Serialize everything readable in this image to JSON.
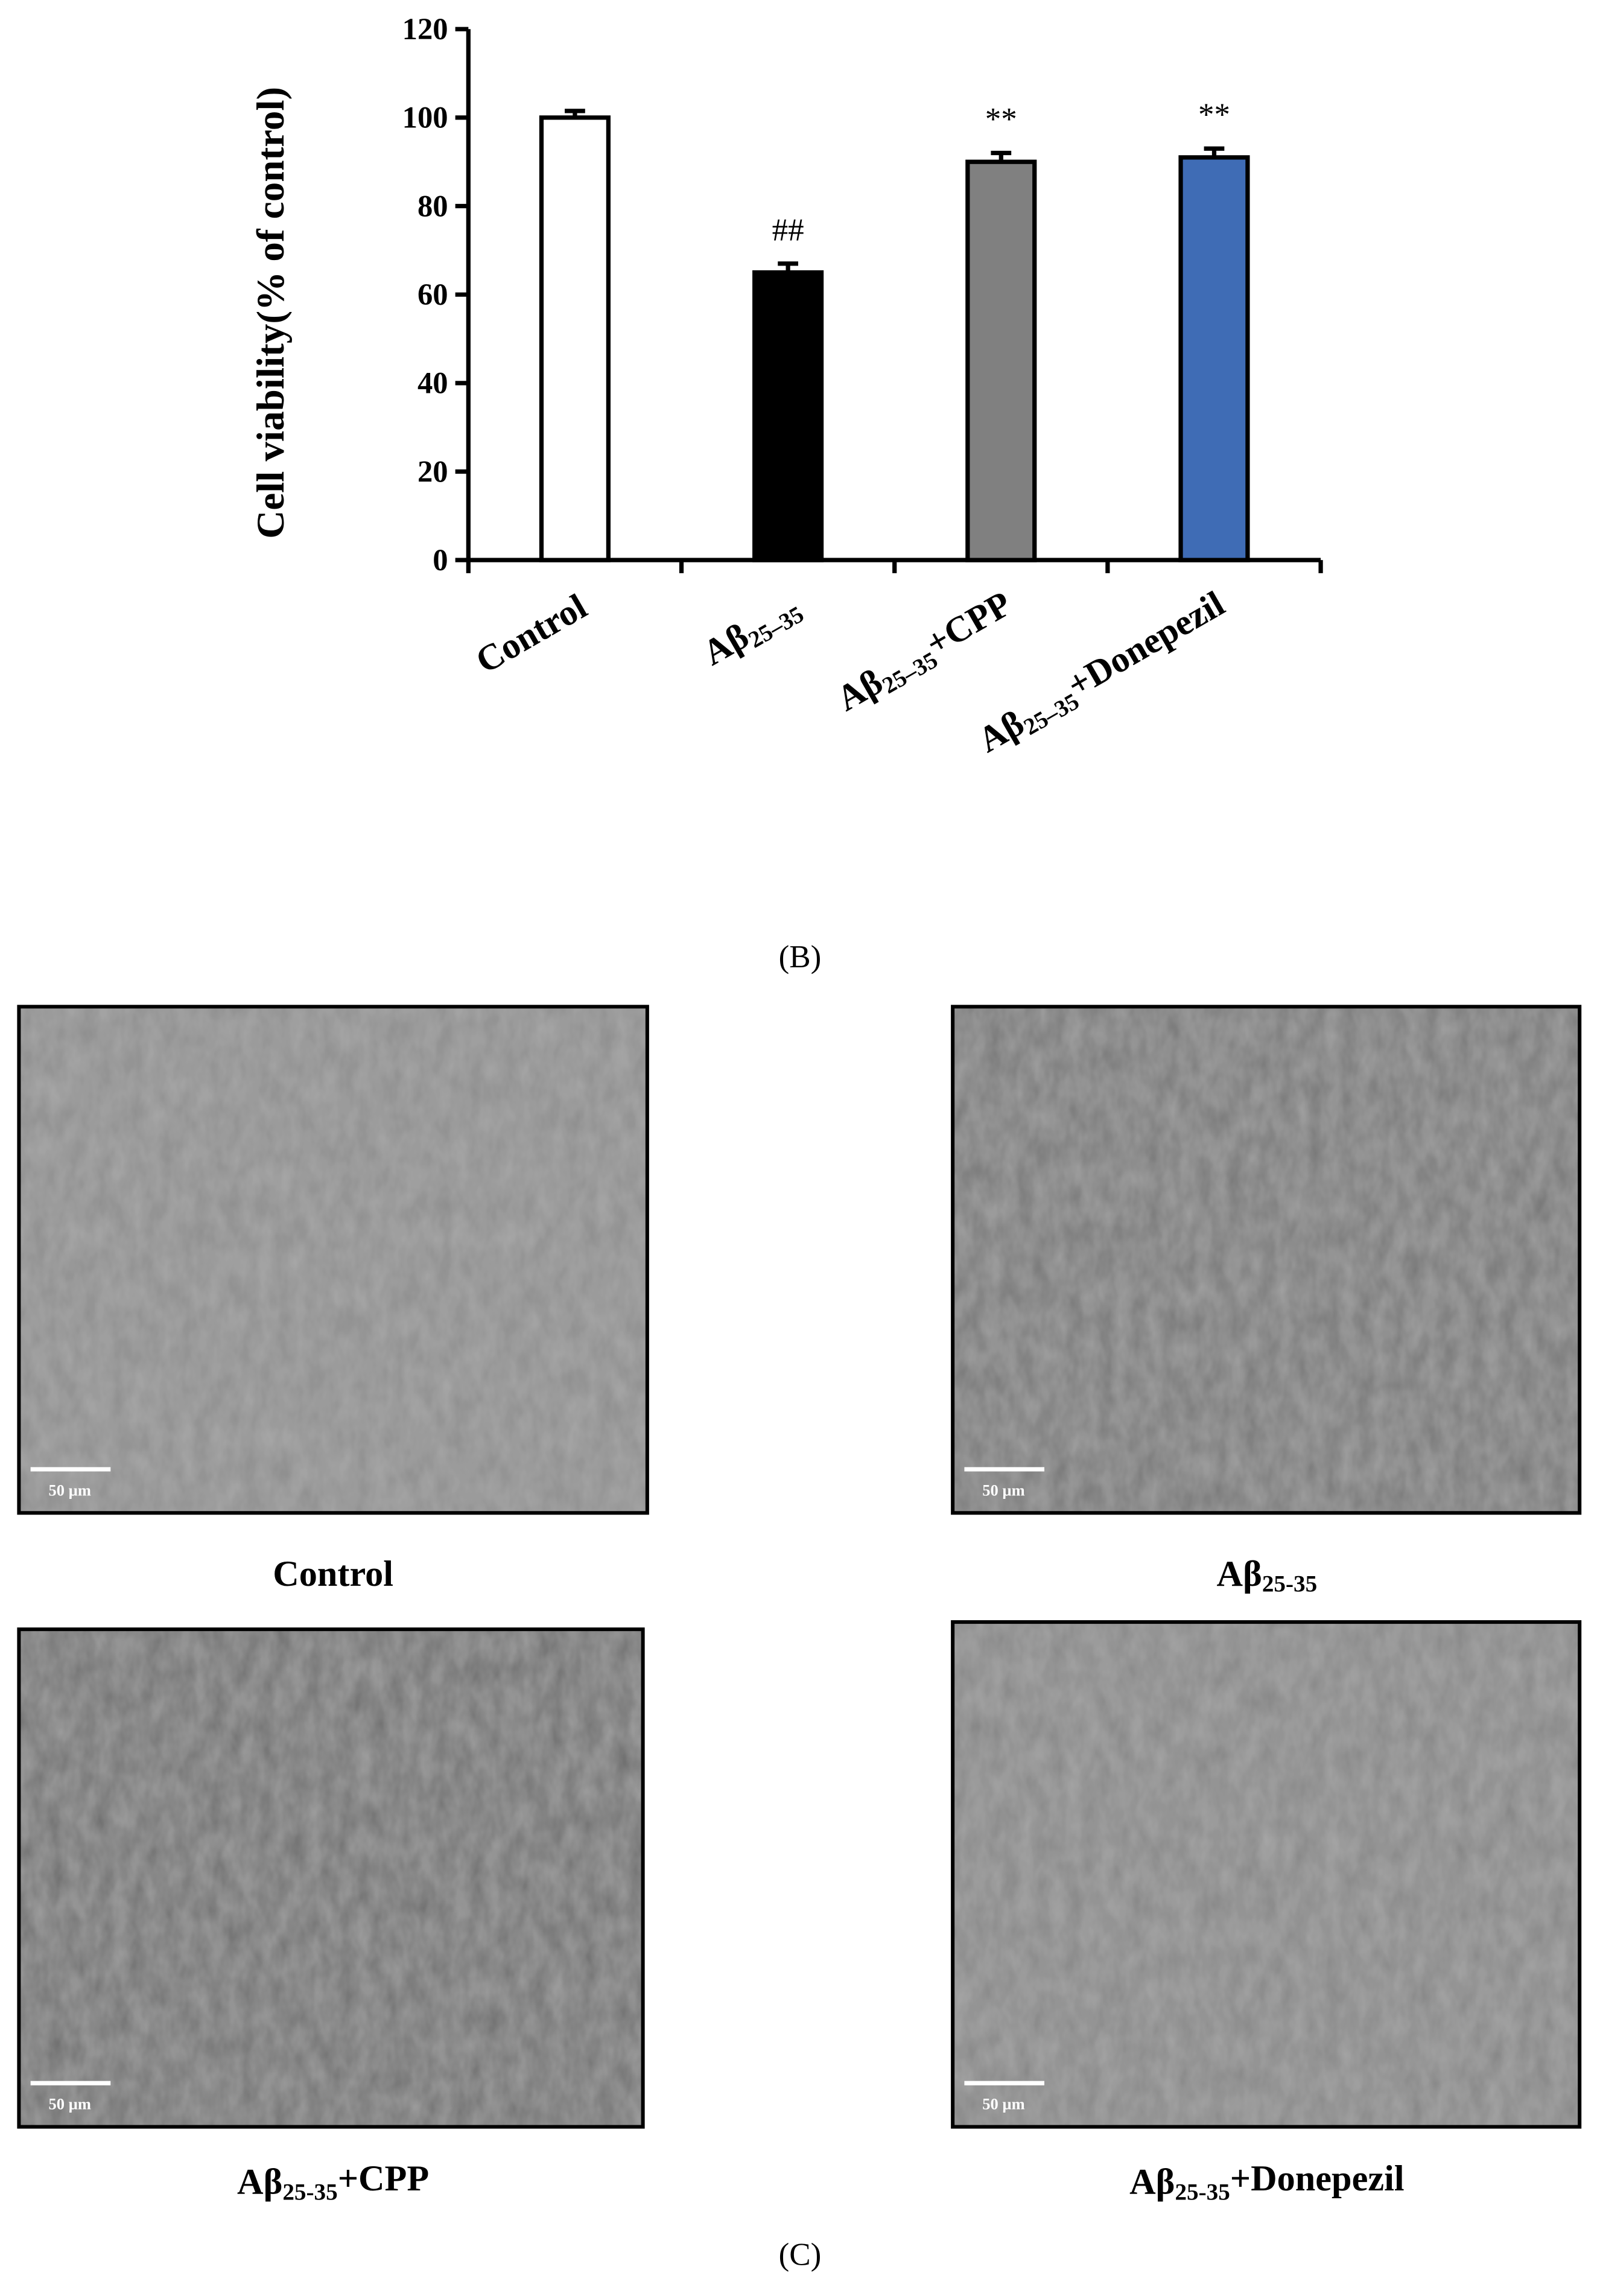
{
  "chart_data": {
    "type": "bar",
    "y_label": "Cell viability(% of control)",
    "categories": [
      "Control",
      "Aβ25–35",
      "Aβ25–35+CPP",
      "Aβ25–35+Donepezil"
    ],
    "values": [
      100,
      65,
      90,
      91
    ],
    "errors": [
      1.5,
      2,
      2,
      2
    ],
    "colors": [
      "#ffffff",
      "#000000",
      "#808080",
      "#3f6cb5"
    ],
    "annotations": [
      null,
      "##",
      "**",
      "**"
    ],
    "ylim": [
      0,
      120
    ],
    "yticks": [
      0,
      20,
      40,
      60,
      80,
      100,
      120
    ],
    "panel_label": "(B)"
  },
  "figure": {
    "panel_label": "(C)",
    "images": [
      {
        "caption": "Control",
        "scale_bar": "50 µm"
      },
      {
        "caption": "Aβ25-35",
        "scale_bar": "50 µm"
      },
      {
        "caption": "Aβ25-35+CPP",
        "scale_bar": "50 µm"
      },
      {
        "caption": "Aβ25-35+Donepezil",
        "scale_bar": "50 µm"
      }
    ]
  }
}
